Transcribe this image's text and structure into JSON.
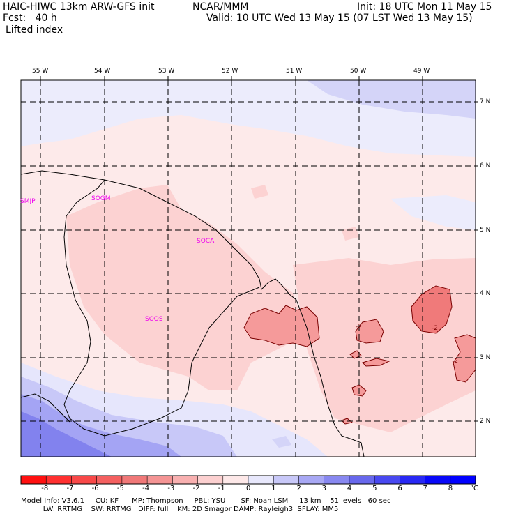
{
  "header": {
    "model_line": "HAIC-HIWC 13km ARW-GFS init",
    "org": "NCAR/MMM",
    "init": "Init: 18 UTC Mon 11 May 15",
    "fcst": "Fcst:   40 h",
    "valid": "Valid: 10 UTC Wed 13 May 15 (07 LST Wed 13 May 15)",
    "field": "Lifted index"
  },
  "map": {
    "lon_labels": [
      "55 W",
      "54 W",
      "53 W",
      "52 W",
      "51 W",
      "50 W",
      "49 W"
    ],
    "lat_labels": [
      "7 N",
      "6 N",
      "5 N",
      "4 N",
      "3 N",
      "2 N"
    ],
    "stations": [
      "SMJP",
      "SOGM",
      "SOCA",
      "SOOS"
    ],
    "contour_labels": [
      "-2",
      "-2",
      "-2"
    ],
    "fill_colors": {
      "pos1": "#e8e8fc",
      "pos2": "#c8c8f8",
      "pos3": "#a0a0f4",
      "pos4": "#8080ee",
      "neg0": "#fde8e8",
      "neg1": "#fcd0d0",
      "neg2": "#f8a8a8",
      "neg3": "#f28888"
    }
  },
  "colorbar": {
    "labels": [
      "-8",
      "-7",
      "-6",
      "-5",
      "-4",
      "-3",
      "-2",
      "-1",
      "0",
      "1",
      "2",
      "3",
      "4",
      "5",
      "6",
      "7",
      "8"
    ],
    "unit": "°C",
    "colors": [
      "#ff1010",
      "#ff3030",
      "#f84848",
      "#f46060",
      "#f07878",
      "#f49494",
      "#f8b0b0",
      "#fcd0d0",
      "#fde8e8",
      "#e8e8fc",
      "#c8c8f8",
      "#a8a8f4",
      "#8888f0",
      "#6868ec",
      "#4848f0",
      "#2828f4",
      "#0808f8",
      "#0000ff"
    ]
  },
  "footer": {
    "line1": "Model Info: V3.6.1     CU: KF      MP: Thompson     PBL: YSU       SF: Noah LSM     13 km    51 levels   60 sec",
    "line2": "          LW: RRTMG    SW: RRTMG   DIFF: full    KM: 2D Smagor DAMP: Rayleigh3  SFLAY: MM5"
  }
}
